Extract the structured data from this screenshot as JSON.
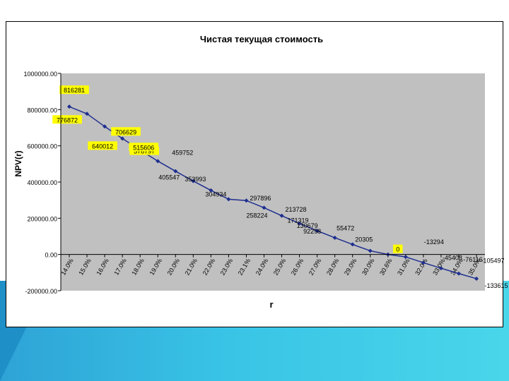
{
  "chart_data": {
    "type": "line",
    "title": "Чистая текущая стоимость",
    "xlabel": "r",
    "ylabel": "NPV(r)",
    "ylim": [
      -200000,
      1000000
    ],
    "yticks": [
      {
        "value": 1000000,
        "label": "1000000.00"
      },
      {
        "value": 800000,
        "label": "800000.00"
      },
      {
        "value": 600000,
        "label": "600000.00"
      },
      {
        "value": 400000,
        "label": "400000.00"
      },
      {
        "value": 200000,
        "label": "200000.00"
      },
      {
        "value": 0,
        "label": "0.00"
      },
      {
        "value": -200000,
        "label": "-200000.00"
      }
    ],
    "xtick_labels": [
      "14.0%",
      "15.0%",
      "16.0%",
      "17.0%",
      "18.0%",
      "19.0%",
      "20.0%",
      "21.0%",
      "22.0%",
      "23.0%",
      "23.1%",
      "24.0%",
      "25.0%",
      "26.0%",
      "27.0%",
      "28.0%",
      "29.0%",
      "30.0%",
      "30.6%",
      "31.0%",
      "32.0%",
      "33.0%",
      "34.0%",
      "35.0%"
    ],
    "series": [
      {
        "values": [
          816281,
          776872,
          706629,
          640012,
          576797,
          515606,
          459752,
          405547,
          353993,
          304934,
          297896,
          258224,
          213728,
          171319,
          130679,
          92298,
          55472,
          20305,
          0,
          -13294,
          -45408,
          -76116,
          -105497,
          -133615
        ]
      }
    ],
    "data_labels": [
      "816281",
      "776872",
      "706629",
      "640012",
      "576797",
      "515606",
      "459752",
      "405547",
      "353993",
      "304934",
      "297896",
      "258224",
      "213728",
      "171319",
      "130679",
      "92298",
      "55472",
      "20305",
      "0",
      "-13294",
      "-45408",
      "-76116",
      "-105497",
      "-133615"
    ],
    "grid": false,
    "legend": "none",
    "colors": {
      "plot_area": "#c0c0c0",
      "line": "#1f2f8f",
      "label_box": "#ffff00"
    }
  }
}
